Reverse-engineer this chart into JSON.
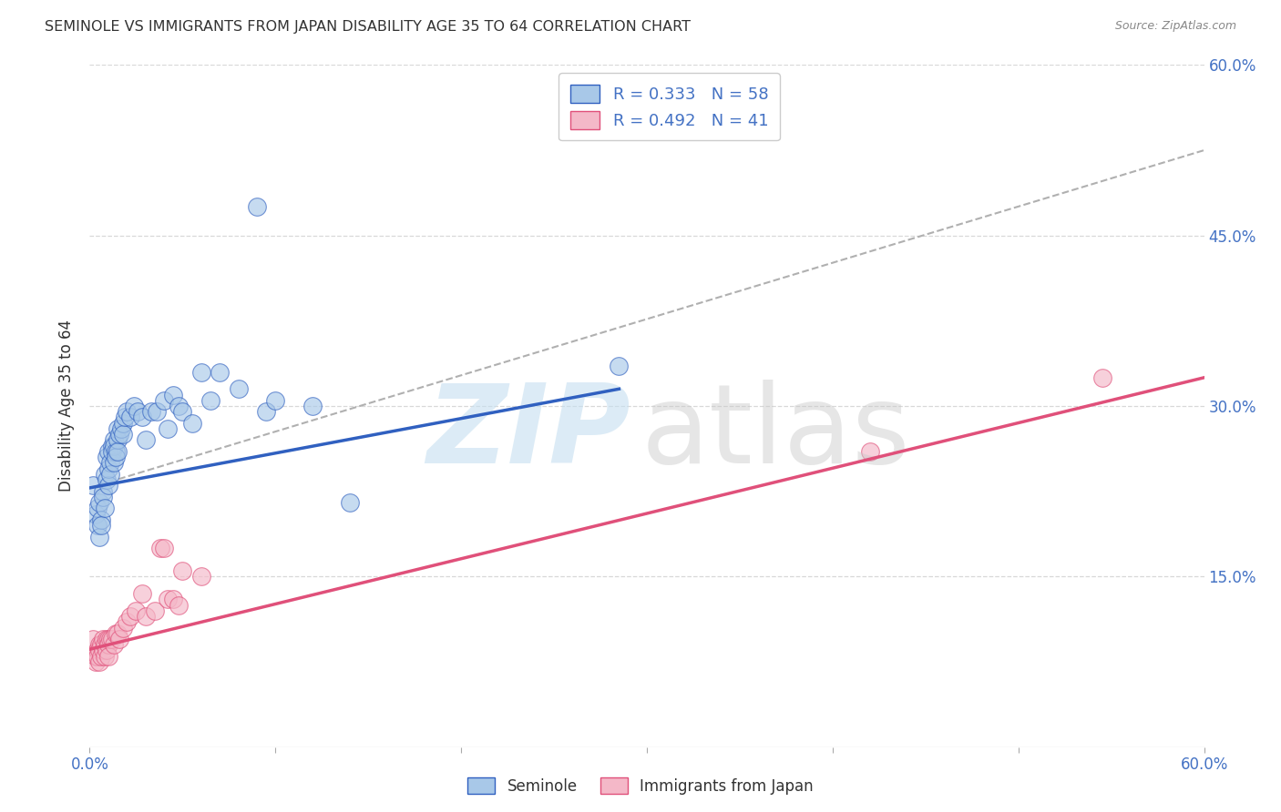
{
  "title": "SEMINOLE VS IMMIGRANTS FROM JAPAN DISABILITY AGE 35 TO 64 CORRELATION CHART",
  "source": "Source: ZipAtlas.com",
  "ylabel": "Disability Age 35 to 64",
  "xlim": [
    0.0,
    0.6
  ],
  "ylim": [
    0.0,
    0.6
  ],
  "background_color": "#ffffff",
  "grid_color": "#d8d8d8",
  "color_blue": "#a8c8e8",
  "color_pink": "#f4b8c8",
  "color_line_blue": "#3060c0",
  "color_line_pink": "#e0507a",
  "color_dashed": "#b0b0b0",
  "blue_line_x_start": 0.0,
  "blue_line_x_end": 0.285,
  "blue_line_y_start": 0.228,
  "blue_line_y_end": 0.315,
  "pink_line_x_start": 0.0,
  "pink_line_x_end": 0.6,
  "pink_line_y_start": 0.086,
  "pink_line_y_end": 0.325,
  "dashed_line_x_start": 0.0,
  "dashed_line_x_end": 0.6,
  "dashed_line_y_start": 0.228,
  "dashed_line_y_end": 0.525,
  "seminole_x": [
    0.002,
    0.003,
    0.004,
    0.004,
    0.005,
    0.005,
    0.006,
    0.006,
    0.007,
    0.007,
    0.008,
    0.008,
    0.009,
    0.009,
    0.01,
    0.01,
    0.01,
    0.011,
    0.011,
    0.012,
    0.012,
    0.013,
    0.013,
    0.013,
    0.014,
    0.014,
    0.015,
    0.015,
    0.015,
    0.016,
    0.017,
    0.018,
    0.018,
    0.019,
    0.02,
    0.022,
    0.024,
    0.026,
    0.028,
    0.03,
    0.033,
    0.036,
    0.04,
    0.042,
    0.045,
    0.048,
    0.05,
    0.055,
    0.06,
    0.065,
    0.07,
    0.08,
    0.09,
    0.095,
    0.1,
    0.12,
    0.14,
    0.285
  ],
  "seminole_y": [
    0.23,
    0.205,
    0.195,
    0.21,
    0.185,
    0.215,
    0.2,
    0.195,
    0.225,
    0.22,
    0.21,
    0.24,
    0.235,
    0.255,
    0.23,
    0.245,
    0.26,
    0.25,
    0.24,
    0.265,
    0.26,
    0.25,
    0.27,
    0.265,
    0.26,
    0.255,
    0.28,
    0.27,
    0.26,
    0.275,
    0.28,
    0.285,
    0.275,
    0.29,
    0.295,
    0.29,
    0.3,
    0.295,
    0.29,
    0.27,
    0.295,
    0.295,
    0.305,
    0.28,
    0.31,
    0.3,
    0.295,
    0.285,
    0.33,
    0.305,
    0.33,
    0.315,
    0.475,
    0.295,
    0.305,
    0.3,
    0.215,
    0.335
  ],
  "japan_x": [
    0.002,
    0.003,
    0.003,
    0.004,
    0.004,
    0.005,
    0.005,
    0.005,
    0.006,
    0.006,
    0.007,
    0.007,
    0.008,
    0.008,
    0.009,
    0.009,
    0.01,
    0.01,
    0.01,
    0.011,
    0.012,
    0.013,
    0.014,
    0.015,
    0.016,
    0.018,
    0.02,
    0.022,
    0.025,
    0.028,
    0.03,
    0.035,
    0.038,
    0.04,
    0.042,
    0.045,
    0.048,
    0.05,
    0.06,
    0.42,
    0.545
  ],
  "japan_y": [
    0.095,
    0.075,
    0.08,
    0.085,
    0.08,
    0.09,
    0.085,
    0.075,
    0.09,
    0.08,
    0.095,
    0.085,
    0.09,
    0.08,
    0.085,
    0.095,
    0.095,
    0.09,
    0.08,
    0.095,
    0.095,
    0.09,
    0.1,
    0.1,
    0.095,
    0.105,
    0.11,
    0.115,
    0.12,
    0.135,
    0.115,
    0.12,
    0.175,
    0.175,
    0.13,
    0.13,
    0.125,
    0.155,
    0.15,
    0.26,
    0.325
  ]
}
